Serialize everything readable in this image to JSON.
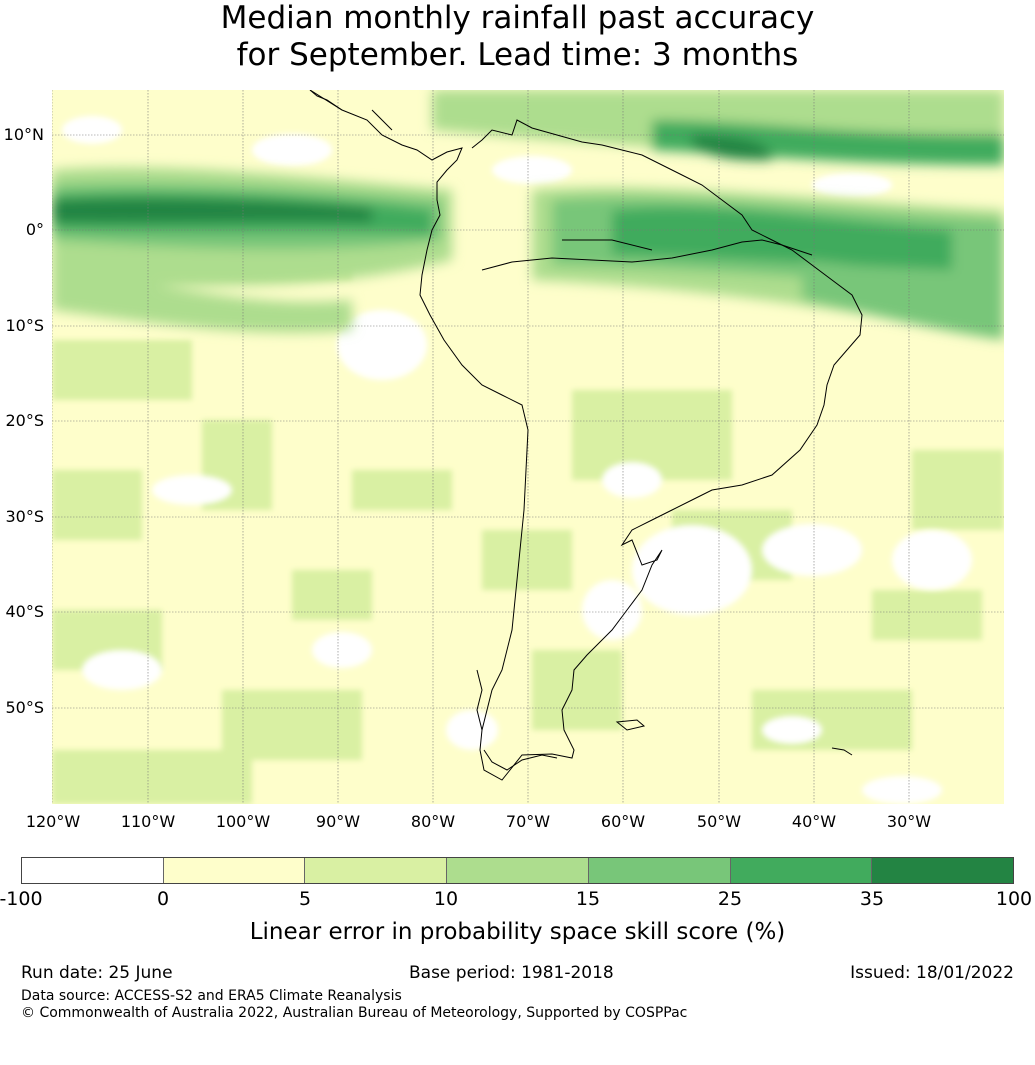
{
  "title_line1": "Median monthly rainfall past accuracy",
  "title_line2": "for September. Lead time: 3 months",
  "lat_labels": [
    "10°N",
    "0°",
    "10°S",
    "20°S",
    "30°S",
    "40°S",
    "50°S"
  ],
  "lon_labels": [
    "120°W",
    "110°W",
    "100°W",
    "90°W",
    "80°W",
    "70°W",
    "60°W",
    "50°W",
    "40°W",
    "30°W"
  ],
  "colorbar": {
    "ticks": [
      "-100",
      "0",
      "5",
      "10",
      "15",
      "25",
      "35",
      "100"
    ],
    "colors": [
      "#ffffff",
      "#fefecb",
      "#d9f0a3",
      "#addd8e",
      "#78c679",
      "#41ab5d",
      "#238443"
    ],
    "label": "Linear error in probability space skill score (%)"
  },
  "footer": {
    "run_date": "Run date: 25 June",
    "base_period": "Base period: 1981-2018",
    "issued": "Issued: 18/01/2022",
    "data_source": "Data source: ACCESS-S2 and ERA5 Climate Reanalysis",
    "copyright": "© Commonwealth of Australia 2022, Australian Bureau of Meteorology, Supported by COSPPac"
  }
}
